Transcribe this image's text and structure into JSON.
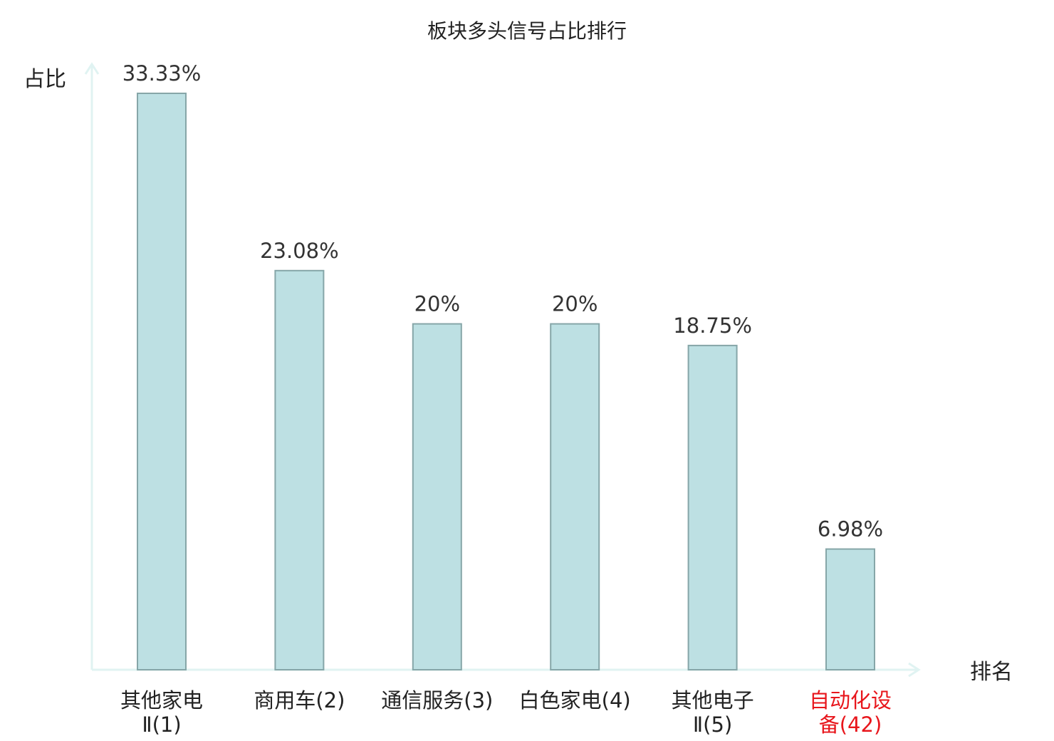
{
  "chart_data": {
    "type": "bar",
    "title": "板块多头信号占比排行",
    "xlabel": "排名",
    "ylabel": "占比",
    "ylim": [
      0,
      35
    ],
    "grid": false,
    "legend": "none",
    "categories": [
      [
        "其他家电",
        "Ⅱ(1)"
      ],
      [
        "商用车(2)"
      ],
      [
        "通信服务(3)"
      ],
      [
        "白色家电(4)"
      ],
      [
        "其他电子",
        "Ⅱ(5)"
      ],
      [
        "自动化设",
        "备(42)"
      ]
    ],
    "highlight_index": 5,
    "values": [
      33.33,
      23.08,
      20,
      20,
      18.75,
      6.98
    ],
    "value_labels": [
      "33.33%",
      "23.08%",
      "20%",
      "20%",
      "18.75%",
      "6.98%"
    ],
    "colors": {
      "bar_fill": "#bde0e3",
      "bar_stroke": "#86a6a8",
      "axis": "#e0f3f2",
      "text": "#222222",
      "highlight": "#e8161c"
    }
  }
}
